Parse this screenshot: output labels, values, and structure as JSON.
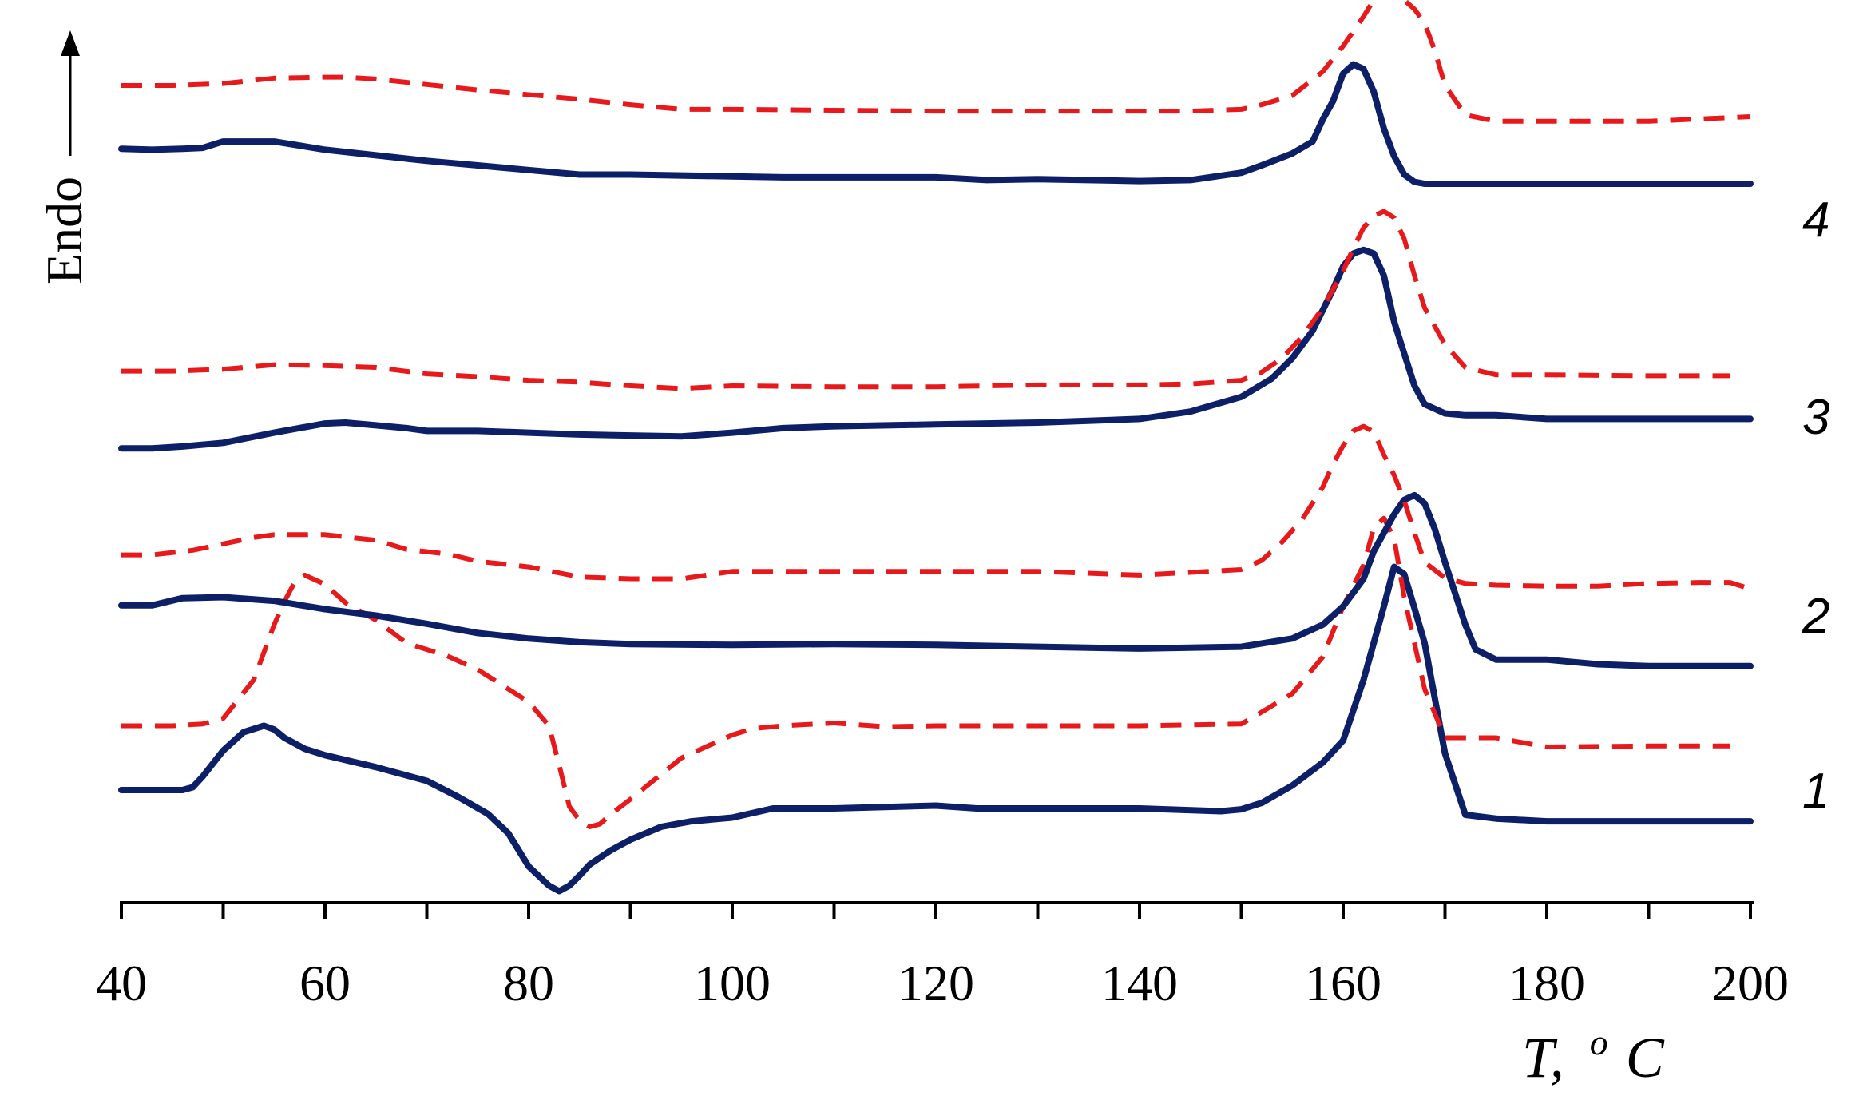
{
  "chart_data": {
    "type": "line",
    "xlabel": "T, °C",
    "xlabel_parts": {
      "T": "T,",
      "sup": "o",
      "unit": "C"
    },
    "ylabel": "Endo",
    "xlim": [
      40,
      200
    ],
    "x_ticks": [
      40,
      60,
      80,
      100,
      120,
      140,
      160,
      180,
      200
    ],
    "minor_tick_step": 10,
    "y_scale": "arbitrary heat flow (offset curves)",
    "ylim": [
      0,
      100
    ],
    "grid": false,
    "legend": "none",
    "colors": {
      "solid": "#0d1f66",
      "dashed": "#e8191b",
      "axis": "#000000"
    },
    "curve_labels": [
      "1",
      "2",
      "3",
      "4"
    ],
    "series": [
      {
        "label": "1",
        "style": "solid",
        "x": [
          40,
          46,
          47,
          48,
          50,
          52,
          54,
          55,
          56,
          58,
          60,
          65,
          70,
          73,
          76,
          78,
          80,
          82,
          83,
          84,
          85,
          86,
          88,
          90,
          93,
          96,
          100,
          104,
          110,
          120,
          124,
          130,
          140,
          148,
          150,
          152,
          155,
          158,
          160,
          162,
          164,
          165,
          166,
          167,
          168,
          170,
          172,
          175,
          180,
          190,
          200
        ],
        "y": [
          14,
          14,
          14.3,
          15.5,
          18.3,
          20.3,
          21,
          20.6,
          19.7,
          18.5,
          17.8,
          16.5,
          15,
          13.3,
          11.4,
          9.3,
          5.7,
          3.6,
          3,
          3.6,
          4.7,
          5.9,
          7.4,
          8.6,
          10,
          10.6,
          11,
          12,
          12,
          12.3,
          12,
          12,
          12,
          11.7,
          11.9,
          12.6,
          14.5,
          17,
          19.4,
          26,
          34,
          38.3,
          37.5,
          33.8,
          30,
          18,
          11.3,
          10.9,
          10.6,
          10.6,
          10.6
        ]
      },
      {
        "label": "1",
        "style": "dashed",
        "x": [
          40,
          45,
          48,
          50,
          53,
          55,
          56,
          57,
          58,
          60,
          62,
          65,
          68,
          72,
          75,
          78,
          80,
          82,
          83,
          84,
          85,
          86,
          87,
          88,
          90,
          95,
          100,
          102,
          105,
          110,
          115,
          120,
          130,
          140,
          150,
          152,
          155,
          158,
          160,
          162,
          163,
          164,
          165,
          166,
          168,
          170,
          175,
          180,
          190,
          198
        ],
        "y": [
          21,
          21,
          21.2,
          21.8,
          26,
          32,
          34.5,
          36.6,
          37.4,
          36.4,
          34.4,
          32.5,
          30,
          28.6,
          27.1,
          25,
          23.6,
          21,
          16.7,
          12.2,
          10.7,
          10,
          10.3,
          11.3,
          13,
          17.5,
          20,
          20.7,
          21,
          21.3,
          20.9,
          21,
          21,
          21,
          21.2,
          22.5,
          24.5,
          28.5,
          34,
          38.5,
          42.5,
          43.6,
          41.4,
          35,
          25,
          19.7,
          19.7,
          18.7,
          18.8,
          18.8
        ]
      },
      {
        "label": "2",
        "style": "solid",
        "x": [
          40,
          43,
          46,
          50,
          55,
          60,
          65,
          70,
          75,
          80,
          85,
          90,
          100,
          110,
          120,
          130,
          140,
          150,
          155,
          158,
          160,
          162,
          163,
          165,
          166,
          167,
          168,
          169,
          170,
          172,
          173,
          175,
          177,
          180,
          185,
          190,
          200
        ],
        "y": [
          34.1,
          34.1,
          34.9,
          35,
          34.6,
          33.7,
          33,
          32.1,
          31.1,
          30.5,
          30.1,
          29.9,
          29.8,
          29.9,
          29.8,
          29.6,
          29.4,
          29.6,
          30.5,
          32,
          34,
          37,
          40,
          44,
          45.6,
          46.1,
          45.2,
          42.4,
          38.8,
          32,
          29.3,
          28.2,
          28.2,
          28.2,
          27.7,
          27.5,
          27.5
        ]
      },
      {
        "label": "2",
        "style": "dashed",
        "x": [
          40,
          43,
          47,
          50,
          53,
          55,
          60,
          65,
          68,
          72,
          75,
          80,
          85,
          90,
          95,
          100,
          110,
          120,
          130,
          140,
          150,
          152,
          154,
          156,
          158,
          159,
          160,
          161,
          162,
          163,
          164,
          165,
          166,
          167,
          168,
          170,
          172,
          175,
          180,
          185,
          190,
          195,
          198,
          200
        ],
        "y": [
          39.6,
          39.6,
          40.1,
          40.8,
          41.5,
          41.8,
          41.8,
          41.2,
          40.2,
          39.7,
          38.9,
          38.3,
          37.2,
          37,
          37,
          37.8,
          37.8,
          37.8,
          37.8,
          37.4,
          38,
          39,
          41,
          43.5,
          47,
          49.5,
          51.5,
          53.1,
          53.6,
          53,
          50.5,
          48.3,
          45.5,
          42,
          38.8,
          37.1,
          36.5,
          36.3,
          36.2,
          36.2,
          36.5,
          36.6,
          36.6,
          35.9
        ]
      },
      {
        "label": "3",
        "style": "solid",
        "x": [
          40,
          43,
          46,
          50,
          55,
          60,
          62,
          65,
          68,
          70,
          75,
          80,
          85,
          90,
          95,
          100,
          105,
          110,
          120,
          130,
          140,
          145,
          150,
          153,
          155,
          157,
          159,
          160,
          161,
          162,
          163,
          164,
          165,
          166,
          167,
          168,
          170,
          172,
          175,
          180,
          190,
          200
        ],
        "y": [
          51.2,
          51.2,
          51.4,
          51.8,
          52.9,
          53.9,
          54,
          53.7,
          53.4,
          53.1,
          53.1,
          52.9,
          52.7,
          52.6,
          52.5,
          52.9,
          53.4,
          53.6,
          53.8,
          54,
          54.4,
          55.2,
          56.8,
          58.8,
          61,
          64,
          68.5,
          71,
          72.4,
          72.8,
          72.4,
          70,
          65,
          61.5,
          58,
          56,
          55,
          54.8,
          54.8,
          54.4,
          54.4,
          54.4
        ]
      },
      {
        "label": "3",
        "style": "dashed",
        "x": [
          40,
          45,
          50,
          55,
          60,
          65,
          70,
          75,
          80,
          85,
          90,
          95,
          100,
          110,
          120,
          130,
          140,
          145,
          150,
          152,
          154,
          156,
          158,
          160,
          161,
          162,
          163,
          164,
          165,
          166,
          167,
          168,
          170,
          172,
          175,
          180,
          190,
          198
        ],
        "y": [
          59.6,
          59.6,
          59.8,
          60.3,
          60.2,
          60,
          59.3,
          59,
          58.6,
          58.4,
          58,
          57.7,
          58,
          57.9,
          57.9,
          58.1,
          58.1,
          58.2,
          58.6,
          59.5,
          61,
          63.4,
          66.5,
          70.5,
          73,
          75.2,
          76.5,
          77,
          76.3,
          74,
          70,
          66.5,
          62.5,
          60,
          59.2,
          59.2,
          59.1,
          59.1
        ]
      },
      {
        "label": "4",
        "style": "solid",
        "x": [
          40,
          43,
          46,
          48,
          50,
          55,
          60,
          65,
          70,
          75,
          80,
          85,
          90,
          100,
          105,
          110,
          120,
          125,
          130,
          135,
          140,
          145,
          150,
          152,
          155,
          157,
          158,
          159,
          160,
          161,
          162,
          163,
          164,
          165,
          166,
          167,
          168,
          170,
          175,
          180,
          190,
          200
        ],
        "y": [
          83.8,
          83.7,
          83.8,
          83.9,
          84.6,
          84.6,
          83.7,
          83.1,
          82.5,
          82,
          81.5,
          81,
          81,
          80.8,
          80.7,
          80.7,
          80.7,
          80.4,
          80.5,
          80.4,
          80.3,
          80.4,
          81.2,
          82,
          83.3,
          84.6,
          87,
          89,
          92,
          93,
          92.5,
          90,
          86,
          83,
          81,
          80.2,
          80,
          80,
          80,
          80,
          80,
          80
        ]
      },
      {
        "label": "4",
        "style": "dashed",
        "x": [
          40,
          45,
          50,
          55,
          60,
          62,
          65,
          70,
          75,
          80,
          85,
          90,
          95,
          100,
          110,
          120,
          130,
          140,
          145,
          150,
          152,
          155,
          158,
          160,
          162,
          163,
          164,
          165,
          166,
          167,
          168,
          169,
          170,
          172,
          175,
          180,
          190,
          200
        ],
        "y": [
          90.7,
          90.7,
          90.9,
          91.5,
          91.6,
          91.6,
          91.4,
          90.8,
          90.2,
          89.7,
          89.2,
          88.6,
          88.1,
          88.1,
          88,
          87.9,
          87.9,
          87.9,
          87.9,
          88.1,
          88.6,
          89.6,
          92.2,
          95,
          98.2,
          100,
          101,
          101,
          100,
          99,
          97.5,
          94.5,
          90.7,
          87.5,
          86.8,
          86.8,
          86.8,
          87.3
        ]
      }
    ]
  }
}
